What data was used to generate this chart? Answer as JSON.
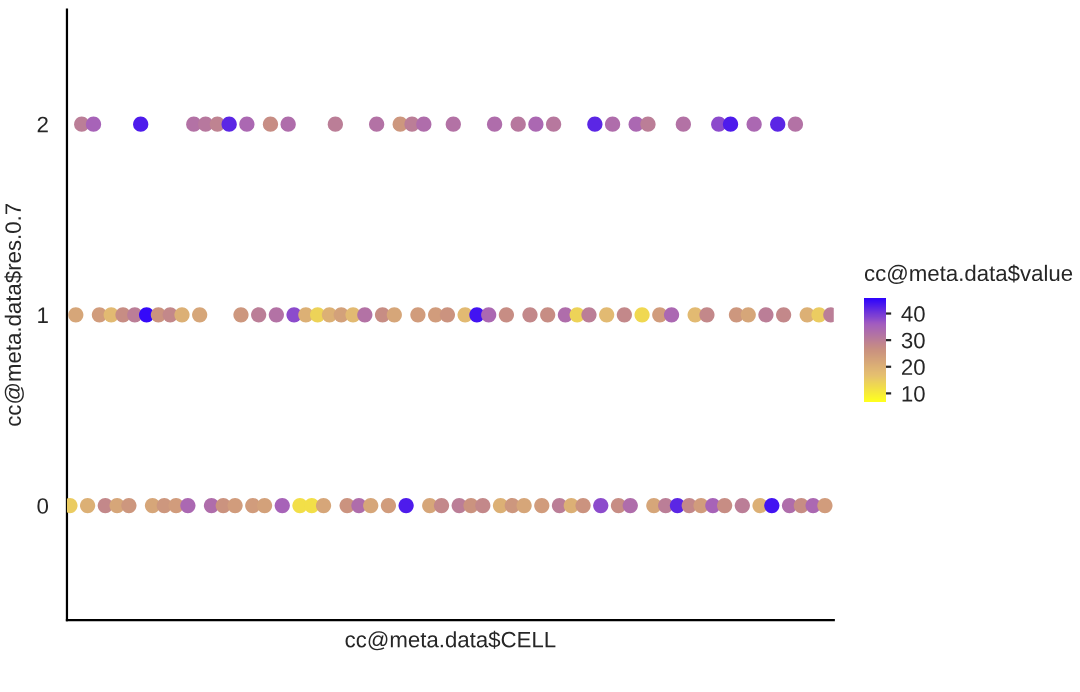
{
  "chart_data": {
    "type": "scatter",
    "xlabel": "cc@meta.data$CELL",
    "ylabel": "cc@meta.data$res.0.7",
    "clabel": "cc@meta.data$value",
    "categories": [
      null,
      null,
      null,
      null,
      null,
      null,
      null,
      null,
      null,
      null,
      null,
      null,
      null,
      null,
      null,
      null,
      null,
      null,
      null,
      null,
      null,
      null,
      null,
      null,
      null,
      null,
      null,
      null,
      null,
      null,
      null,
      null,
      null,
      null,
      null,
      null,
      null,
      null,
      null,
      null,
      null,
      null,
      null,
      null,
      null,
      null,
      null,
      null,
      null,
      null,
      null,
      null,
      null,
      null,
      null,
      null,
      null,
      null,
      null,
      null,
      null,
      null,
      null,
      null,
      null,
      null,
      null,
      null,
      null,
      null,
      null,
      null,
      null,
      null,
      null,
      null,
      null,
      null,
      null,
      null,
      null,
      null,
      null,
      null,
      null,
      null,
      null,
      null,
      null,
      null,
      null,
      null,
      null,
      null,
      null,
      null,
      null,
      null,
      null,
      null,
      null,
      null,
      null,
      null,
      null,
      null,
      null,
      null,
      null,
      null,
      null,
      null,
      null,
      null,
      null,
      null,
      null,
      null,
      null,
      null,
      null,
      null,
      null,
      null,
      null,
      null,
      null,
      null,
      null,
      null
    ],
    "values": [
      0,
      1,
      2,
      0,
      2,
      1,
      0,
      1,
      0,
      1,
      0,
      1,
      2,
      1,
      0,
      1,
      0,
      1,
      0,
      1,
      0,
      2,
      1,
      2,
      0,
      2,
      0,
      2,
      0,
      1,
      2,
      0,
      1,
      0,
      2,
      1,
      0,
      2,
      1,
      0,
      1,
      0,
      1,
      0,
      1,
      2,
      1,
      0,
      1,
      0,
      1,
      0,
      2,
      1,
      0,
      1,
      2,
      0,
      2,
      1,
      2,
      0,
      1,
      0,
      1,
      2,
      0,
      1,
      0,
      1,
      0,
      1,
      2,
      0,
      1,
      0,
      2,
      0,
      1,
      2,
      0,
      1,
      2,
      0,
      1,
      0,
      1,
      0,
      1,
      2,
      0,
      1,
      2,
      0,
      1,
      0,
      2,
      1,
      2,
      0,
      1,
      0,
      1,
      0,
      2,
      0,
      1,
      0,
      1,
      0,
      2,
      0,
      2,
      1,
      0,
      1,
      2,
      0,
      1,
      0,
      2,
      1,
      0,
      2,
      0,
      1,
      0,
      1,
      0,
      1
    ],
    "cvalues": [
      15,
      22,
      30,
      20,
      35,
      24,
      28,
      18,
      22,
      27,
      25,
      30,
      43,
      45,
      22,
      26,
      25,
      28,
      24,
      20,
      34,
      32,
      22,
      31,
      33,
      29,
      26,
      42,
      24,
      25,
      34,
      24,
      30,
      23,
      27,
      32,
      35,
      33,
      38,
      12,
      20,
      12,
      14,
      22,
      20,
      30,
      23,
      26,
      18,
      33,
      32,
      22,
      32,
      27,
      24,
      22,
      25,
      43,
      30,
      24,
      33,
      22,
      24,
      28,
      26,
      32,
      30,
      18,
      26,
      44,
      28,
      34,
      33,
      20,
      27,
      25,
      31,
      22,
      28,
      34,
      24,
      27,
      31,
      30,
      33,
      20,
      14,
      26,
      30,
      42,
      38,
      18,
      33,
      27,
      28,
      33,
      34,
      13,
      30,
      22,
      24,
      30,
      34,
      42,
      32,
      28,
      18,
      24,
      28,
      35,
      38,
      27,
      43,
      25,
      30,
      22,
      34,
      20,
      30,
      44,
      42,
      28,
      33,
      32,
      27,
      20,
      34,
      15,
      24,
      30
    ],
    "ylim": [
      -0.6,
      2.6
    ],
    "yticks": [
      0,
      1,
      2
    ],
    "clim": [
      7,
      46
    ],
    "cticks": [
      10,
      20,
      30,
      40
    ],
    "grid": false,
    "tick_labels": "y"
  }
}
